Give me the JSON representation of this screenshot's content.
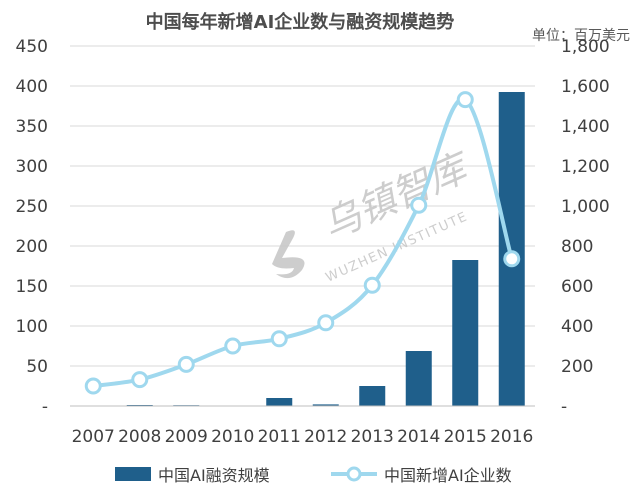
{
  "title": "中国每年新增AI企业数与融资规模趋势",
  "unit_label": "单位：百万美元",
  "watermark": {
    "brand_cn": "乌镇智库",
    "brand_en": "WUZHEN INSTITUTE"
  },
  "colors": {
    "bar": "#1f5f8b",
    "line": "#9fd8ee",
    "marker_fill": "#ffffff",
    "grid": "#d9d9d9"
  },
  "chart_data": {
    "type": "bar",
    "categories": [
      "2007",
      "2008",
      "2009",
      "2010",
      "2011",
      "2012",
      "2013",
      "2014",
      "2015",
      "2016"
    ],
    "series": [
      {
        "name": "中国AI融资规模",
        "type": "bar",
        "axis": "right",
        "values": [
          0,
          5,
          4,
          0,
          40,
          8,
          100,
          275,
          730,
          1570
        ]
      },
      {
        "name": "中国新增AI企业数",
        "type": "line",
        "axis": "left",
        "smooth": true,
        "values": [
          25,
          33,
          52,
          75,
          84,
          104,
          151,
          251,
          383,
          184
        ]
      }
    ],
    "y_left": {
      "ylim": [
        0,
        450
      ],
      "ticks": [
        0,
        50,
        100,
        150,
        200,
        250,
        300,
        350,
        400,
        450
      ],
      "tick_labels": [
        "-",
        "50",
        "100",
        "150",
        "200",
        "250",
        "300",
        "350",
        "400",
        "450"
      ]
    },
    "y_right": {
      "ylim": [
        0,
        1800
      ],
      "ticks": [
        0,
        200,
        400,
        600,
        800,
        1000,
        1200,
        1400,
        1600,
        1800
      ],
      "tick_labels": [
        "-",
        "200",
        "400",
        "600",
        "800",
        "1,000",
        "1,200",
        "1,400",
        "1,600",
        "1,800"
      ]
    },
    "grid": true,
    "legend_position": "bottom"
  }
}
